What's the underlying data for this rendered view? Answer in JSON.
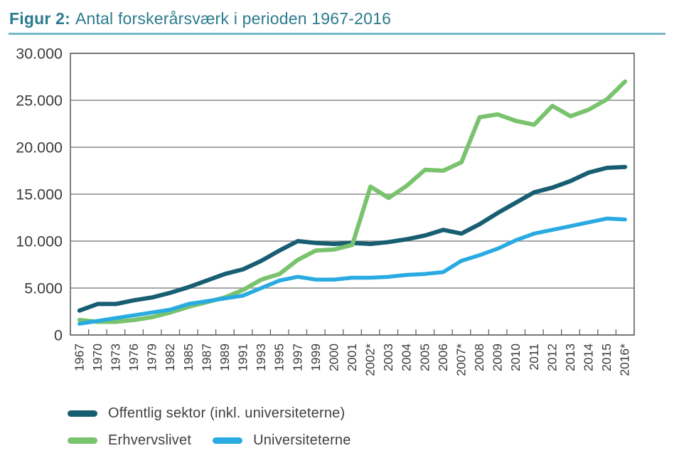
{
  "figure": {
    "title_prefix": "Figur 2:",
    "title_text": "Antal forskerårsværk i perioden 1967-2016"
  },
  "chart_data": {
    "type": "line",
    "title": "Antal forskerårsværk i perioden 1967-2016",
    "categories": [
      "1967",
      "1970",
      "1973",
      "1976",
      "1979",
      "1982",
      "1985",
      "1987",
      "1989",
      "1991",
      "1993",
      "1995",
      "1997",
      "1999",
      "2000",
      "2001",
      "2002*",
      "2003",
      "2004",
      "2005",
      "2006",
      "2007*",
      "2008",
      "2009",
      "2010",
      "2011",
      "2012",
      "2013",
      "2014",
      "2015",
      "2016*"
    ],
    "series": [
      {
        "name": "Offentlig sektor (inkl. universiteterne)",
        "color": "#175e72",
        "values": [
          2600,
          3300,
          3300,
          3700,
          4000,
          4500,
          5100,
          5800,
          6500,
          7000,
          7900,
          9000,
          10000,
          9800,
          9700,
          9800,
          9700,
          9900,
          10200,
          10600,
          11200,
          10800,
          11800,
          13000,
          14100,
          15200,
          15700,
          16400,
          17300,
          17800,
          17900
        ]
      },
      {
        "name": "Erhvervslivet",
        "color": "#7ac36e",
        "values": [
          1600,
          1400,
          1400,
          1600,
          1900,
          2400,
          3000,
          3500,
          4000,
          4800,
          5900,
          6500,
          8000,
          9000,
          9100,
          9600,
          15800,
          14600,
          15900,
          17600,
          17500,
          18400,
          23200,
          23500,
          22800,
          22400,
          24400,
          23300,
          24000,
          25100,
          27000
        ]
      },
      {
        "name": "Universiteterne",
        "color": "#29aae1",
        "values": [
          1200,
          1500,
          1800,
          2100,
          2400,
          2700,
          3300,
          3600,
          3900,
          4200,
          5000,
          5800,
          6200,
          5900,
          5900,
          6100,
          6100,
          6200,
          6400,
          6500,
          6700,
          7900,
          8500,
          9200,
          10100,
          10800,
          11200,
          11600,
          12000,
          12400,
          12300
        ]
      }
    ],
    "xlabel": "",
    "ylabel": "",
    "ylim": [
      0,
      30000
    ],
    "y_ticks": [
      0,
      5000,
      10000,
      15000,
      20000,
      25000,
      30000
    ],
    "y_tick_labels": [
      "0",
      "5.000",
      "10.000",
      "15.000",
      "20.000",
      "25.000",
      "30.000"
    ],
    "grid": "horizontal",
    "legend_position": "bottom"
  },
  "colors": {
    "title": "#2b7b8e",
    "rule": "#74b7c9",
    "grid": "#8a8a8a",
    "border": "#616365",
    "axis_text": "#3c3c3c",
    "legend_text": "#3f3f3f",
    "background": "#ffffff"
  }
}
